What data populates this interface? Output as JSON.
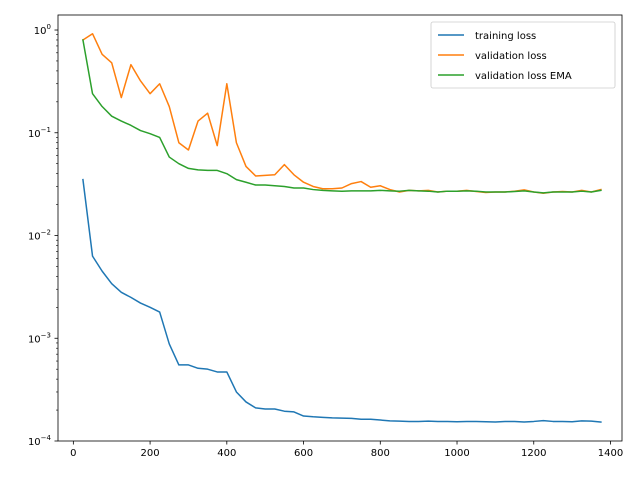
{
  "chart_data": {
    "type": "line",
    "title": "",
    "xlabel": "",
    "ylabel": "",
    "xlim": [
      -40,
      1430
    ],
    "ylim": [
      0.0001,
      1.4
    ],
    "yscale": "log",
    "xticks": [
      0,
      200,
      400,
      600,
      800,
      1000,
      1200,
      1400
    ],
    "xtick_labels": [
      "0",
      "200",
      "400",
      "600",
      "800",
      "1000",
      "1200",
      "1400"
    ],
    "yticks": [
      0.0001,
      0.001,
      0.01,
      0.1,
      1
    ],
    "ytick_labels": [
      {
        "base": "10",
        "exp": "−4"
      },
      {
        "base": "10",
        "exp": "−3"
      },
      {
        "base": "10",
        "exp": "−2"
      },
      {
        "base": "10",
        "exp": "−1"
      },
      {
        "base": "10",
        "exp": "0"
      }
    ],
    "legend_position": "top-right",
    "x": [
      25,
      50,
      75,
      100,
      125,
      150,
      175,
      200,
      225,
      250,
      275,
      300,
      325,
      350,
      375,
      400,
      425,
      450,
      475,
      500,
      525,
      550,
      575,
      600,
      625,
      650,
      675,
      700,
      725,
      750,
      775,
      800,
      825,
      850,
      875,
      900,
      925,
      950,
      975,
      1000,
      1025,
      1050,
      1075,
      1100,
      1125,
      1150,
      1175,
      1200,
      1225,
      1250,
      1275,
      1300,
      1325,
      1350,
      1375
    ],
    "series": [
      {
        "name": "training loss",
        "color": "#1f77b4",
        "values": [
          0.035,
          0.0063,
          0.0045,
          0.0034,
          0.0028,
          0.0025,
          0.0022,
          0.002,
          0.0018,
          0.00088,
          0.00055,
          0.00055,
          0.00051,
          0.0005,
          0.00047,
          0.00047,
          0.0003,
          0.00024,
          0.00021,
          0.000205,
          0.000205,
          0.000195,
          0.000192,
          0.000175,
          0.000172,
          0.00017,
          0.000168,
          0.000167,
          0.000166,
          0.000163,
          0.000163,
          0.00016,
          0.000157,
          0.000156,
          0.000155,
          0.000155,
          0.000156,
          0.000155,
          0.000155,
          0.000154,
          0.000155,
          0.000155,
          0.000154,
          0.000153,
          0.000155,
          0.000155,
          0.000153,
          0.000155,
          0.000158,
          0.000155,
          0.000155,
          0.000154,
          0.000157,
          0.000156,
          0.000153
        ]
      },
      {
        "name": "validation loss",
        "color": "#ff7f0e",
        "values": [
          0.8,
          0.92,
          0.58,
          0.48,
          0.22,
          0.46,
          0.32,
          0.24,
          0.3,
          0.18,
          0.08,
          0.068,
          0.13,
          0.155,
          0.075,
          0.3,
          0.08,
          0.047,
          0.038,
          0.0385,
          0.039,
          0.049,
          0.039,
          0.033,
          0.03,
          0.0285,
          0.0285,
          0.029,
          0.032,
          0.0335,
          0.0295,
          0.0305,
          0.028,
          0.0265,
          0.0275,
          0.0272,
          0.0275,
          0.0265,
          0.027,
          0.027,
          0.0275,
          0.0268,
          0.0262,
          0.0265,
          0.0265,
          0.027,
          0.0278,
          0.0265,
          0.0258,
          0.0265,
          0.0268,
          0.0265,
          0.0275,
          0.0265,
          0.028
        ]
      },
      {
        "name": "validation loss EMA",
        "color": "#2ca02c",
        "values": [
          0.8,
          0.24,
          0.18,
          0.145,
          0.13,
          0.118,
          0.105,
          0.098,
          0.09,
          0.058,
          0.05,
          0.045,
          0.0435,
          0.043,
          0.043,
          0.04,
          0.035,
          0.033,
          0.031,
          0.031,
          0.0305,
          0.03,
          0.029,
          0.029,
          0.028,
          0.0275,
          0.0272,
          0.027,
          0.0272,
          0.0272,
          0.0272,
          0.0275,
          0.0272,
          0.027,
          0.0275,
          0.0272,
          0.027,
          0.0265,
          0.027,
          0.027,
          0.0272,
          0.027,
          0.0265,
          0.0265,
          0.0265,
          0.0268,
          0.0272,
          0.0265,
          0.026,
          0.0265,
          0.0265,
          0.0265,
          0.027,
          0.0265,
          0.0275
        ]
      }
    ]
  }
}
